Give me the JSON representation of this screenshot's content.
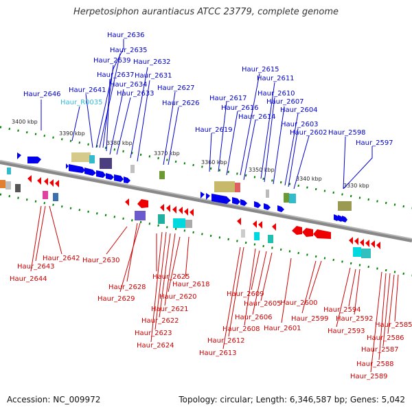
{
  "title": "Herpetosiphon aurantiacus ATCC 23779, complete genome",
  "accession": "Accession: NC_009972",
  "topology": "Topology: circular; Length: 6,346,587 bp; Genes: 5,042",
  "colors": {
    "backbone": "#888888",
    "forward_gene": "#0000ee",
    "reverse_gene": "#ee0000",
    "ncrna": "#33bbcc",
    "tick": "#008000",
    "forward_label": "#0000cc",
    "reverse_label": "#cc0000",
    "ruler_text": "#222222"
  },
  "ruler": [
    "3400 kbp",
    "3390 kbp",
    "3380 kbp",
    "3370 kbp",
    "3360 kbp",
    "3350 kbp",
    "3340 kbp",
    "3330 kbp"
  ],
  "forward_labels": [
    "Haur_2636",
    "Haur_2635",
    "Haur_2639",
    "Haur_2632",
    "Haur_2637",
    "Haur_2631",
    "Haur_2634",
    "Haur_2641",
    "Haur_2646",
    "Haur_2633",
    "Haur_2627",
    "Haur_R0035",
    "Haur_2626",
    "Haur_2615",
    "Haur_2611",
    "Haur_2610",
    "Haur_2617",
    "Haur_2607",
    "Haur_2616",
    "Haur_2604",
    "Haur_2614",
    "Haur_2603",
    "Haur_2619",
    "Haur_2602",
    "Haur_2598",
    "Haur_2597"
  ],
  "reverse_labels": [
    "Haur_2642",
    "Haur_2630",
    "Haur_2643",
    "Haur_2644",
    "Haur_2625",
    "Haur_2628",
    "Haur_2618",
    "Haur_2629",
    "Haur_2620",
    "Haur_2621",
    "Haur_2622",
    "Haur_2623",
    "Haur_2624",
    "Haur_2609",
    "Haur_2605",
    "Haur_2600",
    "Haur_2606",
    "Haur_2599",
    "Haur_2608",
    "Haur_2601",
    "Haur_2612",
    "Haur_2613",
    "Haur_2594",
    "Haur_2592",
    "Haur_2593",
    "Haur_2585",
    "Haur_2586",
    "Haur_2587",
    "Haur_2588",
    "Haur_2589"
  ]
}
